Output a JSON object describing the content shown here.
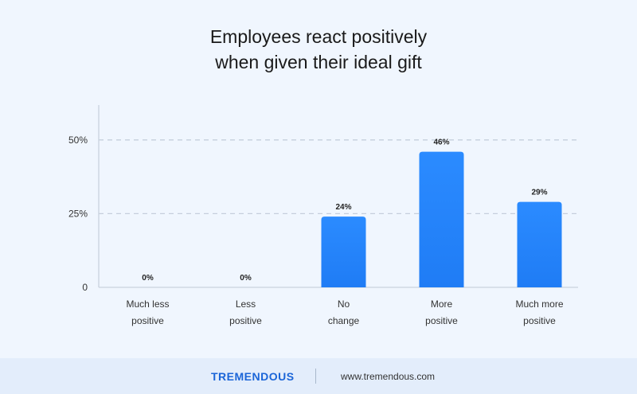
{
  "chart_data": {
    "type": "bar",
    "title": "Employees react positively\nwhen given their ideal gift",
    "categories": [
      "Much less\npositive",
      "Less\npositive",
      "No\nchange",
      "More\npositive",
      "Much more\npositive"
    ],
    "values": [
      0,
      0,
      24,
      46,
      29
    ],
    "data_labels": [
      "0%",
      "0%",
      "24%",
      "46%",
      "29%"
    ],
    "yticks": [
      0,
      25,
      50
    ],
    "ytick_labels": [
      "0",
      "25%",
      "50%"
    ],
    "ylim": [
      0,
      55
    ],
    "grid": "dashed-horizontal",
    "bar_color": "#1f7cf5"
  },
  "footer": {
    "brand": "TREMENDOUS",
    "url": "www.tremendous.com"
  }
}
